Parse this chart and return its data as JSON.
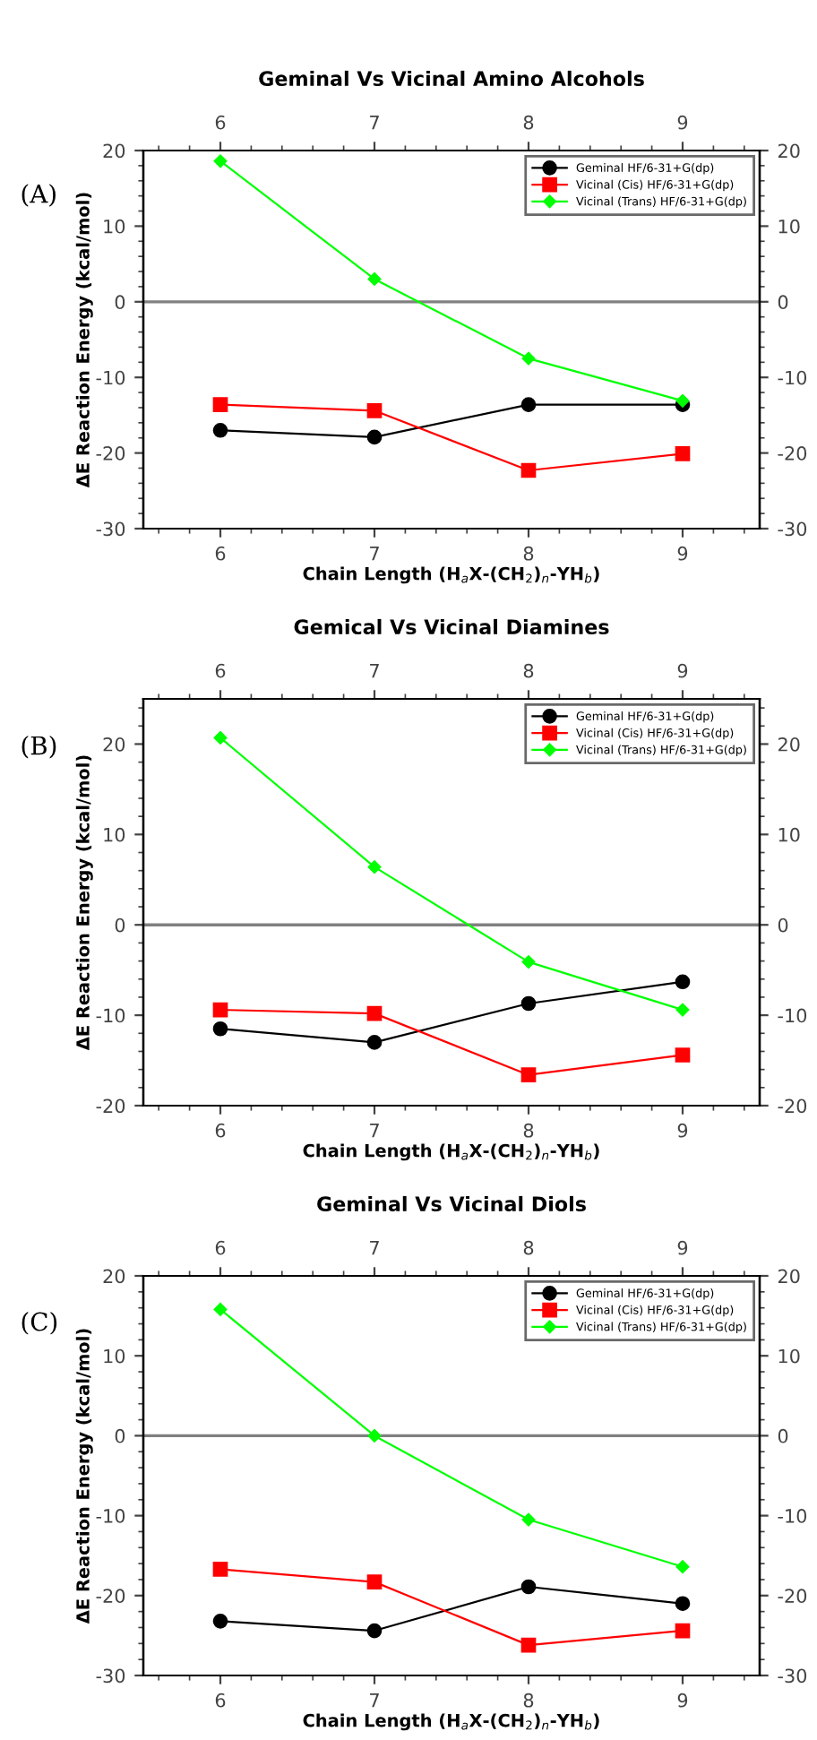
{
  "chart_data": [
    {
      "type": "line",
      "title": "Geminal Vs Vicinal Amino Alcohols",
      "xlabel": "Chain Length (H$_{a}$X-(CH$_{2}$)$_{n}$-YH$_{b}$)",
      "ylabel": "ΔE Reaction Energy (kcal/mol)",
      "annotations": [
        "(A)"
      ],
      "x": [
        6,
        7,
        8,
        9
      ],
      "series": [
        {
          "name": "Geminal HF/6-31+G(dp)",
          "color": "#000000",
          "marker": "circle",
          "values": [
            -17.0,
            -17.9,
            -13.6,
            -13.6
          ]
        },
        {
          "name": "Vicinal (Cis) HF/6-31+G(dp)",
          "color": "#ff0000",
          "marker": "square",
          "values": [
            -13.6,
            -14.4,
            -22.3,
            -20.1
          ]
        },
        {
          "name": "Vicinal (Trans) HF/6-31+G(dp)",
          "color": "#00ff00",
          "marker": "diamond",
          "values": [
            18.6,
            3.0,
            -7.5,
            -13.1
          ]
        }
      ],
      "xlim": [
        5.5,
        9.5
      ],
      "xticks": [
        6,
        7,
        8,
        9
      ],
      "x2lim": [
        5.5,
        9.5
      ],
      "x2ticks": [
        6,
        7,
        8,
        9
      ],
      "ylim": [
        -30,
        20
      ],
      "yticks": [
        -30,
        -20,
        -10,
        0,
        10,
        20
      ],
      "y2lim": [
        -30,
        20
      ],
      "y2ticks": [
        -30,
        -20,
        -10,
        0,
        10,
        20
      ],
      "ref_lines": [
        {
          "axis": "y",
          "value": 0,
          "color": "#808080"
        }
      ],
      "legend": "top right"
    },
    {
      "type": "line",
      "title": "Gemical Vs Vicinal Diamines",
      "xlabel": "Chain Length (H$_{a}$X-(CH$_{2}$)$_{n}$-YH$_{b}$)",
      "ylabel": "ΔE Reaction Energy (kcal/mol)",
      "annotations": [
        "(B)"
      ],
      "x": [
        6,
        7,
        8,
        9
      ],
      "series": [
        {
          "name": "Geminal HF/6-31+G(dp)",
          "color": "#000000",
          "marker": "circle",
          "values": [
            -11.5,
            -13.0,
            -8.7,
            -6.3
          ]
        },
        {
          "name": "Vicinal (Cis) HF/6-31+G(dp)",
          "color": "#ff0000",
          "marker": "square",
          "values": [
            -9.4,
            -9.8,
            -16.6,
            -14.4
          ]
        },
        {
          "name": "Vicinal (Trans) HF/6-31+G(dp)",
          "color": "#00ff00",
          "marker": "diamond",
          "values": [
            20.7,
            6.4,
            -4.1,
            -9.4
          ]
        }
      ],
      "xlim": [
        5.5,
        9.5
      ],
      "xticks": [
        6,
        7,
        8,
        9
      ],
      "x2lim": [
        5.5,
        9.5
      ],
      "x2ticks": [
        6,
        7,
        8,
        9
      ],
      "ylim": [
        -20,
        25
      ],
      "yticks": [
        -20,
        -10,
        0,
        10,
        20
      ],
      "y2lim": [
        -20,
        25
      ],
      "y2ticks": [
        -20,
        -10,
        0,
        10,
        20
      ],
      "ref_lines": [
        {
          "axis": "y",
          "value": 0,
          "color": "#808080"
        }
      ],
      "legend": "top right"
    },
    {
      "type": "line",
      "title": "Geminal Vs Vicinal Diols",
      "xlabel": "Chain Length (H$_{a}$X-(CH$_{2}$)$_{n}$-YH$_{b}$)",
      "ylabel": "ΔE Reaction Energy (kcal/mol)",
      "annotations": [
        "(C)"
      ],
      "x": [
        6,
        7,
        8,
        9
      ],
      "series": [
        {
          "name": "Geminal HF/6-31+G(dp)",
          "color": "#000000",
          "marker": "circle",
          "values": [
            -23.2,
            -24.4,
            -18.9,
            -21.0
          ]
        },
        {
          "name": "Vicinal (Cis) HF/6-31+G(dp)",
          "color": "#ff0000",
          "marker": "square",
          "values": [
            -16.7,
            -18.3,
            -26.2,
            -24.4
          ]
        },
        {
          "name": "Vicinal (Trans) HF/6-31+G(dp)",
          "color": "#00ff00",
          "marker": "diamond",
          "values": [
            15.8,
            0.0,
            -10.5,
            -16.4
          ]
        }
      ],
      "xlim": [
        5.5,
        9.5
      ],
      "xticks": [
        6,
        7,
        8,
        9
      ],
      "x2lim": [
        5.5,
        9.5
      ],
      "x2ticks": [
        6,
        7,
        8,
        9
      ],
      "ylim": [
        -30,
        20
      ],
      "yticks": [
        -30,
        -20,
        -10,
        0,
        10,
        20
      ],
      "y2lim": [
        -30,
        20
      ],
      "y2ticks": [
        -30,
        -20,
        -10,
        0,
        10,
        20
      ],
      "ref_lines": [
        {
          "axis": "y",
          "value": 0,
          "color": "#808080"
        }
      ],
      "legend": "top right"
    }
  ]
}
